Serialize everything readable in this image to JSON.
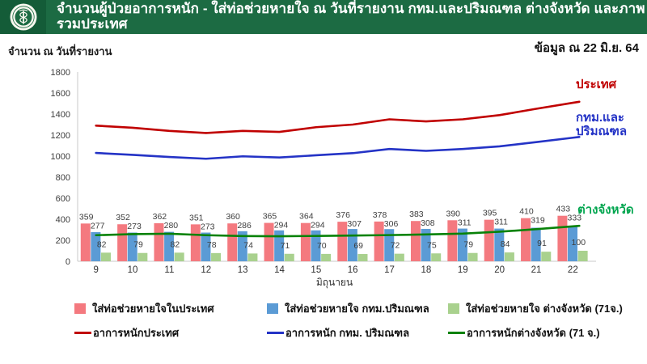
{
  "theme": {
    "header_green": "#1c6b43",
    "logo_box_green": "#145c38",
    "page_bg": "#ffffff",
    "axis_gray": "#c9c9c9",
    "label_gray": "#3d3d3d"
  },
  "header": {
    "title": "จำนวนผู้ป่วยอาการหนัก - ใส่ท่อช่วยหายใจ ณ วันที่รายงาน กทม.และปริมณฑล ต่างจังหวัด และภาพรวมประเทศ",
    "logo": "moph-seal-icon"
  },
  "subheader": {
    "as_of": "ข้อมูล ณ 22 มิ.ย. 64"
  },
  "chart_data": {
    "type": "bar+line",
    "title": "จำนวน ณ วันที่รายงาน",
    "categories": [
      "9",
      "10",
      "11",
      "12",
      "13",
      "14",
      "15",
      "16",
      "17",
      "18",
      "19",
      "20",
      "21",
      "22"
    ],
    "x_axis_label": "มิถุนายน",
    "ylim": [
      0,
      1800
    ],
    "y_ticks": [
      0,
      200,
      400,
      600,
      800,
      1000,
      1200,
      1400,
      1600,
      1800
    ],
    "grid": false,
    "legend_position": "bottom",
    "bar_series": [
      {
        "name": "ใส่ท่อช่วยหายใจในประเทศ",
        "color": "#f4797f",
        "values": [
          359,
          352,
          362,
          351,
          360,
          365,
          364,
          376,
          378,
          383,
          390,
          395,
          410,
          433
        ]
      },
      {
        "name": "ใส่ท่อช่วยหายใจ กทม.ปริมณฑล",
        "color": "#5b9bd5",
        "values": [
          277,
          273,
          280,
          273,
          286,
          294,
          294,
          307,
          306,
          308,
          311,
          311,
          319,
          333
        ]
      },
      {
        "name": "ใส่ท่อช่วยหายใจ ต่างจังหวัด (71จ.)",
        "color": "#a9d18e",
        "values": [
          82,
          79,
          82,
          78,
          74,
          71,
          70,
          69,
          72,
          75,
          79,
          84,
          91,
          100
        ]
      }
    ],
    "line_series": [
      {
        "name": "อาการหนักประเทศ",
        "annotation": "ประเทศ",
        "color": "#c00000",
        "label_color": "#c00000",
        "values": [
          1290,
          1270,
          1240,
          1220,
          1240,
          1230,
          1275,
          1300,
          1350,
          1330,
          1350,
          1390,
          1450,
          1507
        ]
      },
      {
        "name": "อาการหนัก กทม. ปริมณฑล",
        "annotation": "กทม.และ\nปริมณฑล",
        "color": "#2433c6",
        "label_color": "#2433c6",
        "values": [
          1030,
          1012,
          992,
          975,
          998,
          987,
          1008,
          1028,
          1068,
          1050,
          1068,
          1093,
          1133,
          1175
        ]
      },
      {
        "name": "อาการหนักต่างจังหวัด (71 จ.)",
        "annotation": "ต่างจังหวัด",
        "color": "#088208",
        "label_color": "#00a54e",
        "values": [
          248,
          258,
          262,
          248,
          240,
          238,
          241,
          245,
          249,
          255,
          263,
          281,
          305,
          332
        ]
      }
    ]
  }
}
